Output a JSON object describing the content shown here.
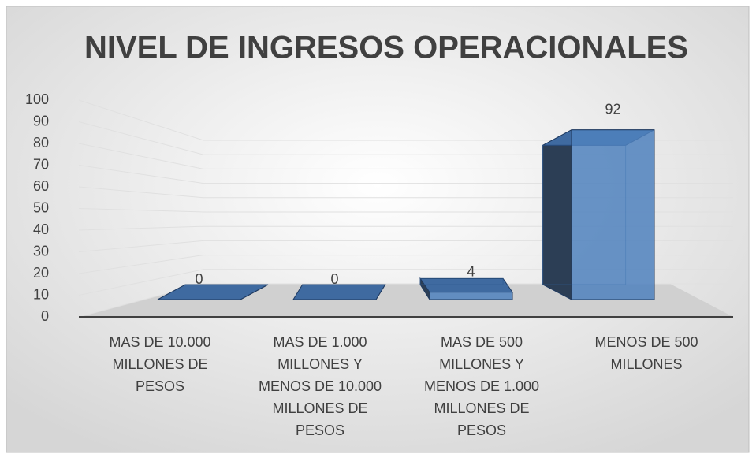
{
  "chart_data": {
    "type": "bar3d",
    "title": "NIVEL DE INGRESOS OPERACIONALES",
    "categories": [
      [
        "MAS DE  10.000",
        "MILLONES DE",
        "PESOS"
      ],
      [
        "MAS DE 1.000",
        "MILLONES Y",
        "MENOS DE 10.000",
        "MILLONES  DE",
        "PESOS"
      ],
      [
        "MAS DE 500",
        "MILLONES Y",
        "MENOS DE 1.000",
        "MILLONES DE",
        "PESOS"
      ],
      [
        "MENOS DE 500",
        "MILLONES"
      ]
    ],
    "values": [
      0,
      0,
      4,
      92
    ],
    "color": "#4f81bd",
    "ylim": [
      0,
      100
    ],
    "yticks": [
      0,
      10,
      20,
      30,
      40,
      50,
      60,
      70,
      80,
      90,
      100
    ],
    "grid": true
  }
}
